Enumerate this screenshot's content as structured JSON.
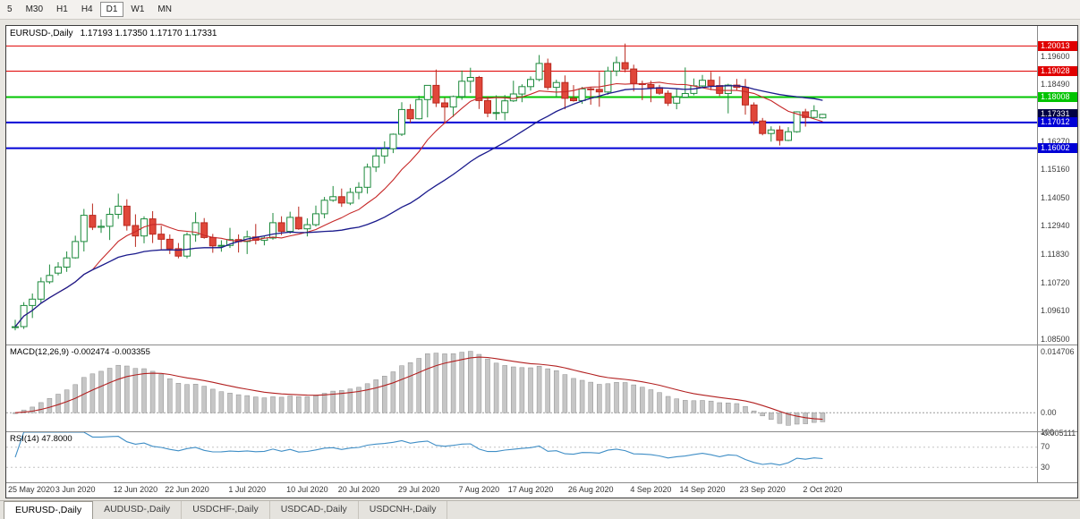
{
  "toolbar": {
    "timeframes": [
      "5",
      "M30",
      "H1",
      "H4",
      "D1",
      "W1",
      "MN"
    ],
    "active_timeframe": "D1"
  },
  "chart": {
    "title_symbol": "EURUSD-,Daily",
    "title_ohlc": "1.17193 1.17350 1.17170 1.17331",
    "price_axis_ticks": [
      "1.19600",
      "1.18490",
      "1.16270",
      "1.15160",
      "1.14050",
      "1.12940",
      "1.11830",
      "1.10720",
      "1.09610",
      "1.08500"
    ],
    "price_tags": [
      {
        "value": "1.20013",
        "price": 1.20013,
        "color": "#e00000"
      },
      {
        "value": "1.19028",
        "price": 1.19028,
        "color": "#e00000"
      },
      {
        "value": "1.18008",
        "price": 1.18008,
        "color": "#00c400"
      },
      {
        "value": "1.17331",
        "price": 1.17331,
        "color": "#000042"
      },
      {
        "value": "1.17012",
        "price": 1.17012,
        "color": "#0000d6"
      },
      {
        "value": "1.16002",
        "price": 1.16002,
        "color": "#0000d6"
      }
    ],
    "hlines": [
      {
        "price": 1.20013,
        "color": "#e00000",
        "width": 1
      },
      {
        "price": 1.19028,
        "color": "#e00000",
        "width": 1
      },
      {
        "price": 1.18008,
        "color": "#00c400",
        "width": 2
      },
      {
        "price": 1.17012,
        "color": "#0000d6",
        "width": 2
      },
      {
        "price": 1.16002,
        "color": "#0000d6",
        "width": 2
      }
    ],
    "macd": {
      "label": "MACD(12,26,9) -0.002474 -0.003355",
      "axis_ticks": [
        "0.014706",
        "0.00",
        "-0.005111"
      ],
      "histogram_color": "#c6c6c6",
      "signal_color": "#b22020"
    },
    "rsi": {
      "label": "RSI(14) 47.8000",
      "axis_ticks": [
        "100",
        "70",
        "30"
      ],
      "levels": [
        70,
        30
      ],
      "line_color": "#3f8ec6"
    }
  },
  "chart_data": {
    "type": "candlestick",
    "symbol": "EURUSD",
    "period": "Daily",
    "ylim": [
      1.083,
      1.208
    ],
    "up_color": "#1d8a3c",
    "down_color": "#b8281e",
    "down_fill": "#e0473a",
    "last_values": {
      "open": 1.17193,
      "high": 1.1735,
      "low": 1.1717,
      "close": 1.17331,
      "macd": -0.002474,
      "macd_signal": -0.003355,
      "rsi": 47.8
    },
    "overlays": [
      {
        "name": "ma-fast",
        "type": "sma",
        "period": 10,
        "color": "#c62828"
      },
      {
        "name": "ma-slow",
        "type": "sma",
        "period": 25,
        "color": "#1a1a8c"
      }
    ],
    "x_ticks": [
      {
        "label": "25 May 2020",
        "index": 0
      },
      {
        "label": "3 Jun 2020",
        "index": 7
      },
      {
        "label": "12 Jun 2020",
        "index": 14
      },
      {
        "label": "22 Jun 2020",
        "index": 20
      },
      {
        "label": "1 Jul 2020",
        "index": 27
      },
      {
        "label": "10 Jul 2020",
        "index": 34
      },
      {
        "label": "20 Jul 2020",
        "index": 40
      },
      {
        "label": "29 Jul 2020",
        "index": 47
      },
      {
        "label": "7 Aug 2020",
        "index": 54
      },
      {
        "label": "17 Aug 2020",
        "index": 60
      },
      {
        "label": "26 Aug 2020",
        "index": 67
      },
      {
        "label": "4 Sep 2020",
        "index": 74
      },
      {
        "label": "14 Sep 2020",
        "index": 80
      },
      {
        "label": "23 Sep 2020",
        "index": 87
      },
      {
        "label": "2 Oct 2020",
        "index": 94
      }
    ],
    "candles": [
      [
        1.0898,
        1.0927,
        1.0886,
        1.09
      ],
      [
        1.09,
        1.0996,
        1.0891,
        1.0983
      ],
      [
        1.0983,
        1.103,
        1.0934,
        1.1008
      ],
      [
        1.1008,
        1.1093,
        1.0992,
        1.1076
      ],
      [
        1.1076,
        1.1144,
        1.1068,
        1.1101
      ],
      [
        1.111,
        1.1153,
        1.1101,
        1.1134
      ],
      [
        1.1134,
        1.1195,
        1.1115,
        1.117
      ],
      [
        1.117,
        1.1257,
        1.1167,
        1.1234
      ],
      [
        1.1234,
        1.1362,
        1.1195,
        1.1337
      ],
      [
        1.1337,
        1.1383,
        1.1279,
        1.129
      ],
      [
        1.129,
        1.132,
        1.1268,
        1.1294
      ],
      [
        1.1294,
        1.1366,
        1.124,
        1.1341
      ],
      [
        1.1341,
        1.1422,
        1.1323,
        1.1373
      ],
      [
        1.1373,
        1.14,
        1.1277,
        1.1297
      ],
      [
        1.1297,
        1.1341,
        1.1213,
        1.1256
      ],
      [
        1.1256,
        1.1333,
        1.1227,
        1.1323
      ],
      [
        1.1323,
        1.1353,
        1.1228,
        1.1263
      ],
      [
        1.1263,
        1.1296,
        1.1204,
        1.1243
      ],
      [
        1.1243,
        1.1262,
        1.1185,
        1.1206
      ],
      [
        1.1206,
        1.1228,
        1.1168,
        1.1177
      ],
      [
        1.1177,
        1.127,
        1.1168,
        1.1261
      ],
      [
        1.1261,
        1.1349,
        1.1233,
        1.1308
      ],
      [
        1.1308,
        1.1326,
        1.1245,
        1.125
      ],
      [
        1.125,
        1.1264,
        1.119,
        1.1217
      ],
      [
        1.1217,
        1.1239,
        1.1194,
        1.1219
      ],
      [
        1.1219,
        1.1288,
        1.1209,
        1.1242
      ],
      [
        1.1242,
        1.1262,
        1.1191,
        1.1234
      ],
      [
        1.1234,
        1.1277,
        1.1185,
        1.1252
      ],
      [
        1.1252,
        1.1303,
        1.1223,
        1.1239
      ],
      [
        1.1239,
        1.1254,
        1.1219,
        1.1248
      ],
      [
        1.1248,
        1.1346,
        1.1241,
        1.1308
      ],
      [
        1.1308,
        1.1333,
        1.1259,
        1.1274
      ],
      [
        1.1274,
        1.1351,
        1.1265,
        1.1329
      ],
      [
        1.1329,
        1.1371,
        1.128,
        1.1284
      ],
      [
        1.1284,
        1.1325,
        1.1254,
        1.13
      ],
      [
        1.13,
        1.1375,
        1.1293,
        1.1343
      ],
      [
        1.1343,
        1.1409,
        1.1325,
        1.1396
      ],
      [
        1.1396,
        1.1452,
        1.139,
        1.141
      ],
      [
        1.141,
        1.1442,
        1.137,
        1.1385
      ],
      [
        1.1385,
        1.1444,
        1.1377,
        1.1427
      ],
      [
        1.1427,
        1.1467,
        1.14,
        1.1447
      ],
      [
        1.1447,
        1.154,
        1.1422,
        1.1526
      ],
      [
        1.1526,
        1.1601,
        1.1507,
        1.157
      ],
      [
        1.157,
        1.1627,
        1.154,
        1.1598
      ],
      [
        1.1598,
        1.1658,
        1.1581,
        1.1655
      ],
      [
        1.1655,
        1.1781,
        1.1648,
        1.1752
      ],
      [
        1.1752,
        1.1773,
        1.17,
        1.1716
      ],
      [
        1.1716,
        1.1806,
        1.1713,
        1.1791
      ],
      [
        1.1791,
        1.1848,
        1.1721,
        1.1847
      ],
      [
        1.1847,
        1.1909,
        1.1762,
        1.1778
      ],
      [
        1.1778,
        1.1798,
        1.1696,
        1.1762
      ],
      [
        1.1762,
        1.1807,
        1.1723,
        1.1803
      ],
      [
        1.1803,
        1.1905,
        1.179,
        1.1863
      ],
      [
        1.1863,
        1.1916,
        1.1817,
        1.1878
      ],
      [
        1.1878,
        1.1884,
        1.1754,
        1.1787
      ],
      [
        1.1787,
        1.1804,
        1.1722,
        1.1738
      ],
      [
        1.1738,
        1.1808,
        1.1711,
        1.174
      ],
      [
        1.174,
        1.1809,
        1.171,
        1.1786
      ],
      [
        1.1786,
        1.1865,
        1.1782,
        1.1813
      ],
      [
        1.1813,
        1.1851,
        1.1781,
        1.1842
      ],
      [
        1.1842,
        1.1882,
        1.1826,
        1.187
      ],
      [
        1.187,
        1.1966,
        1.1863,
        1.1933
      ],
      [
        1.1933,
        1.1952,
        1.1829,
        1.1839
      ],
      [
        1.1839,
        1.1869,
        1.1801,
        1.1858
      ],
      [
        1.1858,
        1.1886,
        1.1753,
        1.1796
      ],
      [
        1.1796,
        1.1848,
        1.1783,
        1.1787
      ],
      [
        1.1787,
        1.1841,
        1.1774,
        1.1833
      ],
      [
        1.1833,
        1.1839,
        1.1771,
        1.1831
      ],
      [
        1.1831,
        1.19,
        1.1763,
        1.1821
      ],
      [
        1.1821,
        1.192,
        1.181,
        1.1903
      ],
      [
        1.1903,
        1.196,
        1.1883,
        1.1936
      ],
      [
        1.1936,
        1.2011,
        1.1898,
        1.1911
      ],
      [
        1.1911,
        1.1928,
        1.1823,
        1.1854
      ],
      [
        1.1854,
        1.1865,
        1.1789,
        1.185
      ],
      [
        1.185,
        1.1865,
        1.1781,
        1.1838
      ],
      [
        1.1838,
        1.1849,
        1.181,
        1.1816
      ],
      [
        1.1816,
        1.1827,
        1.1766,
        1.1777
      ],
      [
        1.1777,
        1.1834,
        1.1753,
        1.1801
      ],
      [
        1.1801,
        1.1917,
        1.1799,
        1.1815
      ],
      [
        1.1815,
        1.1874,
        1.1808,
        1.1845
      ],
      [
        1.1845,
        1.1888,
        1.1839,
        1.1867
      ],
      [
        1.1867,
        1.19,
        1.1828,
        1.1846
      ],
      [
        1.1846,
        1.1882,
        1.1805,
        1.1815
      ],
      [
        1.1815,
        1.1853,
        1.1737,
        1.1848
      ],
      [
        1.1848,
        1.1872,
        1.1827,
        1.1839
      ],
      [
        1.1839,
        1.1872,
        1.1732,
        1.177
      ],
      [
        1.177,
        1.178,
        1.1692,
        1.1707
      ],
      [
        1.1707,
        1.1719,
        1.1651,
        1.1658
      ],
      [
        1.1658,
        1.1686,
        1.1626,
        1.1672
      ],
      [
        1.1672,
        1.1688,
        1.1611,
        1.1631
      ],
      [
        1.1631,
        1.1683,
        1.1628,
        1.1665
      ],
      [
        1.1665,
        1.1745,
        1.1661,
        1.1743
      ],
      [
        1.1743,
        1.1755,
        1.1685,
        1.1721
      ],
      [
        1.1721,
        1.1769,
        1.1717,
        1.1747
      ],
      [
        1.17193,
        1.1735,
        1.1717,
        1.17331
      ]
    ]
  },
  "tabs": {
    "items": [
      "EURUSD-,Daily",
      "AUDUSD-,Daily",
      "USDCHF-,Daily",
      "USDCAD-,Daily",
      "USDCNH-,Daily"
    ],
    "active": "EURUSD-,Daily"
  }
}
